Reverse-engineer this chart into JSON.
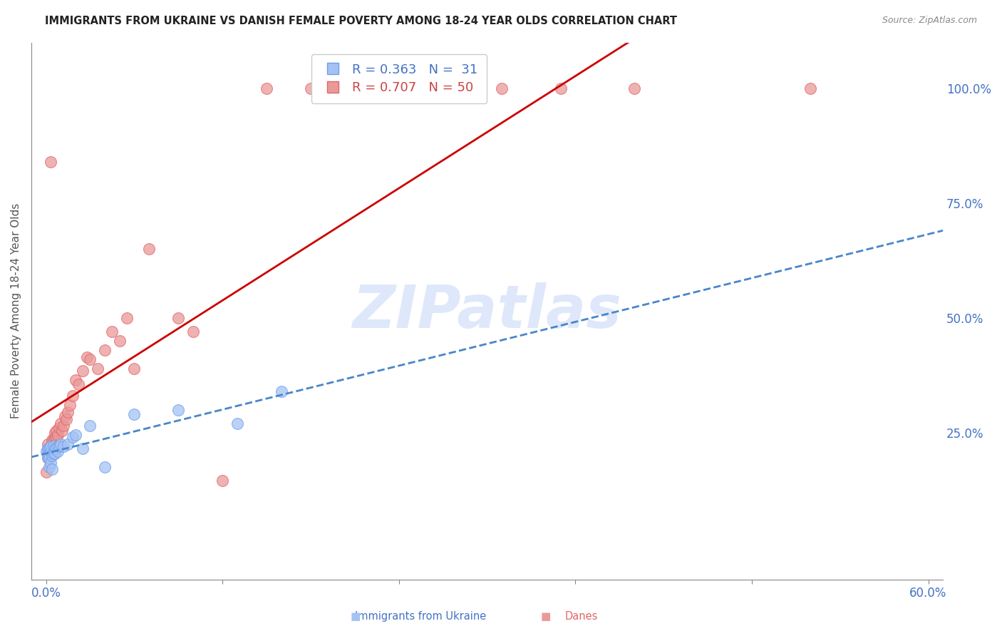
{
  "title": "IMMIGRANTS FROM UKRAINE VS DANISH FEMALE POVERTY AMONG 18-24 YEAR OLDS CORRELATION CHART",
  "source": "Source: ZipAtlas.com",
  "ylabel": "Female Poverty Among 18-24 Year Olds",
  "ukraine_color": "#a4c2f4",
  "ukraine_edge_color": "#6d9eeb",
  "danes_color": "#ea9999",
  "danes_edge_color": "#e06666",
  "ukraine_line_color": "#4a86c8",
  "danes_line_color": "#cc0000",
  "watermark_text": "ZIPatlas",
  "watermark_color": "#c9daf8",
  "legend_ukraine": "R = 0.363   N =  31",
  "legend_danes": "R = 0.707   N = 50",
  "right_yticks": [
    0.0,
    0.25,
    0.5,
    0.75,
    1.0
  ],
  "right_yticklabels": [
    "",
    "25.0%",
    "50.0%",
    "75.0%",
    "100.0%"
  ],
  "ukraine_x": [
    0.0,
    0.001,
    0.001,
    0.001,
    0.002,
    0.002,
    0.002,
    0.003,
    0.003,
    0.003,
    0.004,
    0.004,
    0.005,
    0.005,
    0.006,
    0.006,
    0.007,
    0.008,
    0.009,
    0.01,
    0.012,
    0.015,
    0.018,
    0.02,
    0.025,
    0.03,
    0.04,
    0.06,
    0.09,
    0.13,
    0.16
  ],
  "ukraine_y": [
    0.21,
    0.195,
    0.205,
    0.215,
    0.175,
    0.195,
    0.215,
    0.185,
    0.21,
    0.22,
    0.17,
    0.2,
    0.205,
    0.22,
    0.205,
    0.215,
    0.215,
    0.21,
    0.22,
    0.225,
    0.22,
    0.225,
    0.24,
    0.245,
    0.215,
    0.265,
    0.175,
    0.29,
    0.3,
    0.27,
    0.34
  ],
  "danes_x": [
    0.0,
    0.001,
    0.001,
    0.001,
    0.002,
    0.002,
    0.003,
    0.003,
    0.003,
    0.004,
    0.004,
    0.005,
    0.005,
    0.006,
    0.006,
    0.007,
    0.007,
    0.008,
    0.009,
    0.01,
    0.011,
    0.012,
    0.013,
    0.014,
    0.015,
    0.016,
    0.018,
    0.02,
    0.022,
    0.025,
    0.028,
    0.03,
    0.035,
    0.04,
    0.045,
    0.05,
    0.055,
    0.06,
    0.07,
    0.09,
    0.1,
    0.12,
    0.15,
    0.18,
    0.2,
    0.26,
    0.31,
    0.35,
    0.4,
    0.52
  ],
  "danes_y": [
    0.165,
    0.195,
    0.215,
    0.225,
    0.2,
    0.215,
    0.21,
    0.22,
    0.84,
    0.215,
    0.235,
    0.225,
    0.235,
    0.24,
    0.25,
    0.24,
    0.255,
    0.245,
    0.26,
    0.27,
    0.255,
    0.265,
    0.285,
    0.28,
    0.295,
    0.31,
    0.33,
    0.365,
    0.355,
    0.385,
    0.415,
    0.41,
    0.39,
    0.43,
    0.47,
    0.45,
    0.5,
    0.39,
    0.65,
    0.5,
    0.47,
    0.145,
    1.0,
    1.0,
    1.0,
    1.0,
    1.0,
    1.0,
    1.0,
    1.0
  ],
  "xlim_data": [
    0.0,
    0.6
  ],
  "ylim_data": [
    -0.07,
    1.1
  ],
  "xtick_positions": [
    0.0,
    0.12,
    0.24,
    0.36,
    0.48,
    0.6
  ],
  "grid_color": "#d0d0d0",
  "axis_color": "#888888"
}
